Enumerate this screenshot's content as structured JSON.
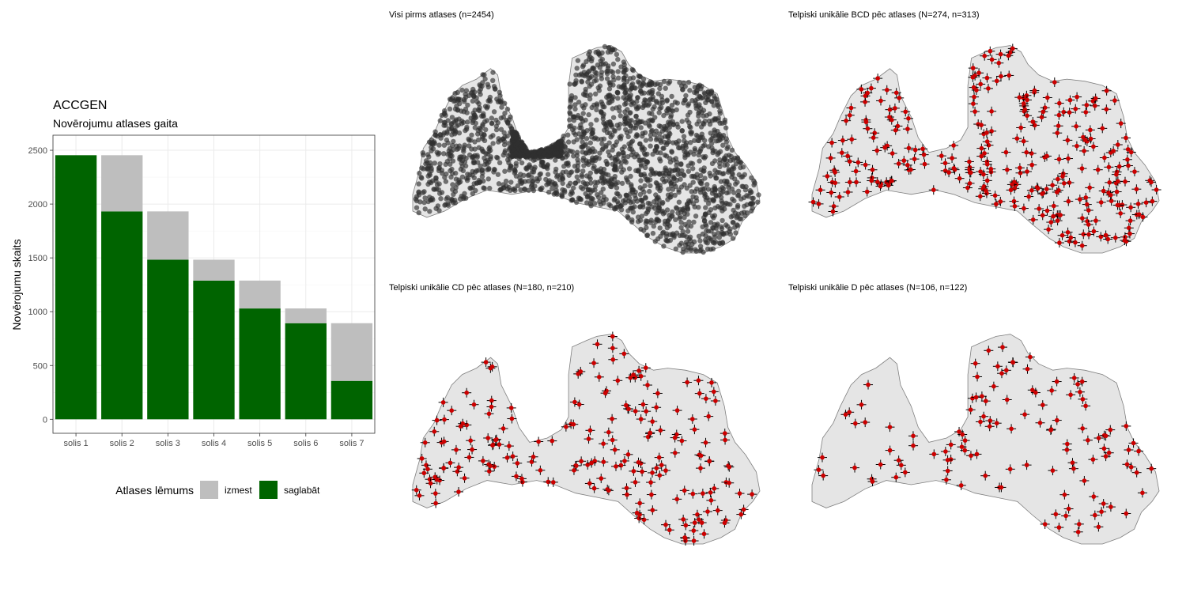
{
  "colors": {
    "keep": "#006400",
    "drop": "#bebebe",
    "land": "#e5e5e5",
    "border": "#7f7f7f",
    "grid": "#ebebeb",
    "point_dark": "#303030",
    "point_red": "#cc0000",
    "cross": "#000000"
  },
  "chart_data": [
    {
      "type": "bar",
      "stacked": true,
      "title": "ACCGEN",
      "subtitle": "Novērojumu atlases gaita",
      "xlabel": "",
      "ylabel": "Novērojumu skaits",
      "categories": [
        "solis 1",
        "solis 2",
        "solis 3",
        "solis 4",
        "solis 5",
        "solis 6",
        "solis 7"
      ],
      "ylim": [
        0,
        2600
      ],
      "yticks": [
        0,
        500,
        1000,
        1500,
        2000,
        2500
      ],
      "grid": true,
      "series": [
        {
          "name": "saglabāt",
          "color": "#006400",
          "values": [
            2454,
            1932,
            1483,
            1289,
            1030,
            893,
            357
          ]
        },
        {
          "name": "izmest",
          "color": "#bebebe",
          "values": [
            0,
            522,
            449,
            194,
            259,
            137,
            536
          ]
        }
      ],
      "legend": {
        "title": "Atlases lēmums",
        "placement": "bottom",
        "entries": [
          {
            "label": "izmest",
            "color": "#bebebe"
          },
          {
            "label": "saglabāt",
            "color": "#006400"
          }
        ]
      }
    },
    {
      "type": "scatter",
      "title": "Visi pirms atlases (n=2454)",
      "marker": "dot",
      "n_points": 2454,
      "basemap": "Latvia municipalities"
    },
    {
      "type": "scatter",
      "title": "Telpiski unikālie BCD pēc atlases (N=274, n=313)",
      "marker": "cross",
      "n_points": 313,
      "basemap": "Latvia municipalities"
    },
    {
      "type": "scatter",
      "title": "Telpiski unikālie CD pēc atlases (N=180, n=210)",
      "marker": "cross",
      "n_points": 210,
      "basemap": "Latvia municipalities"
    },
    {
      "type": "scatter",
      "title": "Telpiski unikālie D pēc atlases (N=106, n=122)",
      "marker": "cross",
      "n_points": 122,
      "basemap": "Latvia municipalities"
    }
  ]
}
